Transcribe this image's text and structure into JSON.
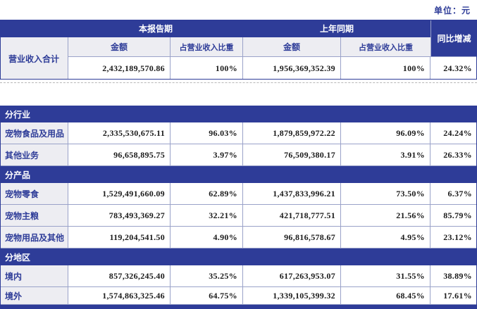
{
  "unit_label": "单位：元",
  "colors": {
    "header_blue": "#2e3c98",
    "cell_gray": "#ededf2",
    "grid_line": "#9aa2c9",
    "label_text_blue": "#2e3c98",
    "data_text": "#1a1a1a"
  },
  "table": {
    "headers": {
      "current_period": "本报告期",
      "prior_period": "上年同期",
      "yoy_change": "同比增减",
      "amount": "金额",
      "revenue_ratio": "占营业收入比重"
    },
    "summary": {
      "label": "营业收入合计",
      "current_amount": "2,432,189,570.86",
      "current_ratio": "100%",
      "prior_amount": "1,956,369,352.39",
      "prior_ratio": "100%",
      "yoy": "24.32%"
    },
    "sections": [
      {
        "title": "分行业",
        "rows": [
          {
            "label": "宠物食品及用品",
            "current_amount": "2,335,530,675.11",
            "current_ratio": "96.03%",
            "prior_amount": "1,879,859,972.22",
            "prior_ratio": "96.09%",
            "yoy": "24.24%"
          },
          {
            "label": "其他业务",
            "current_amount": "96,658,895.75",
            "current_ratio": "3.97%",
            "prior_amount": "76,509,380.17",
            "prior_ratio": "3.91%",
            "yoy": "26.33%"
          }
        ]
      },
      {
        "title": "分产品",
        "rows": [
          {
            "label": "宠物零食",
            "current_amount": "1,529,491,660.09",
            "current_ratio": "62.89%",
            "prior_amount": "1,437,833,996.21",
            "prior_ratio": "73.50%",
            "yoy": "6.37%"
          },
          {
            "label": "宠物主粮",
            "current_amount": "783,493,369.27",
            "current_ratio": "32.21%",
            "prior_amount": "421,718,777.51",
            "prior_ratio": "21.56%",
            "yoy": "85.79%"
          },
          {
            "label": "宠物用品及其他",
            "current_amount": "119,204,541.50",
            "current_ratio": "4.90%",
            "prior_amount": "96,816,578.67",
            "prior_ratio": "4.95%",
            "yoy": "23.12%"
          }
        ]
      },
      {
        "title": "分地区",
        "rows": [
          {
            "label": "境内",
            "current_amount": "857,326,245.40",
            "current_ratio": "35.25%",
            "prior_amount": "617,263,953.07",
            "prior_ratio": "31.55%",
            "yoy": "38.89%"
          },
          {
            "label": "境外",
            "current_amount": "1,574,863,325.46",
            "current_ratio": "64.75%",
            "prior_amount": "1,339,105,399.32",
            "prior_ratio": "68.45%",
            "yoy": "17.61%"
          }
        ]
      }
    ]
  }
}
